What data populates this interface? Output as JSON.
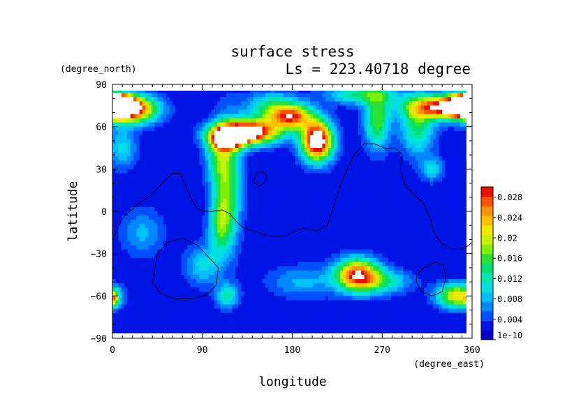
{
  "chart_data": {
    "type": "heatmap",
    "title": "surface stress",
    "subtitle": "Ls = 223.40718 degree",
    "xlabel": "longitude",
    "ylabel": "latitude",
    "x_units": "(degree_east)",
    "y_units": "(degree_north)",
    "xlim": [
      0,
      360
    ],
    "ylim": [
      -90,
      90
    ],
    "xticks": [
      "0",
      "90",
      "180",
      "270",
      "360"
    ],
    "yticks": [
      "90",
      "60",
      "30",
      "0",
      "−30",
      "−60",
      "−90"
    ],
    "colorbar": {
      "min": 0,
      "max": 0.03,
      "tick_labels": [
        "1e-10",
        "0.004",
        "0.008",
        "0.012",
        "0.016",
        "0.02",
        "0.024",
        "0.028"
      ],
      "tick_values": [
        0,
        0.004,
        0.008,
        0.012,
        0.016,
        0.02,
        0.024,
        0.028
      ],
      "levels": 16,
      "colors": [
        "#0000c8",
        "#0014e6",
        "#0050ff",
        "#0088ff",
        "#00c0ff",
        "#00e0e0",
        "#00e8b0",
        "#00e070",
        "#30e030",
        "#80f000",
        "#c8f000",
        "#f0e800",
        "#ffc000",
        "#ff9000",
        "#ff5000",
        "#e81000"
      ],
      "over_color": "#ffffff"
    },
    "background_value": 0.002,
    "features": [
      {
        "lon": 20,
        "lat": 72,
        "value": 0.022,
        "sigma_lon": 18,
        "sigma_lat": 7
      },
      {
        "lon": 0,
        "lat": 76,
        "value": 0.034,
        "sigma_lon": 12,
        "sigma_lat": 5
      },
      {
        "lon": 340,
        "lat": 74,
        "value": 0.032,
        "sigma_lon": 28,
        "sigma_lat": 6
      },
      {
        "lon": 360,
        "lat": 75,
        "value": 0.034,
        "sigma_lon": 10,
        "sigma_lat": 4
      },
      {
        "lon": 305,
        "lat": 60,
        "value": 0.012,
        "sigma_lon": 12,
        "sigma_lat": 14
      },
      {
        "lon": 265,
        "lat": 64,
        "value": 0.014,
        "sigma_lon": 9,
        "sigma_lat": 14
      },
      {
        "lon": 250,
        "lat": 83,
        "value": 0.012,
        "sigma_lon": 25,
        "sigma_lat": 5
      },
      {
        "lon": 135,
        "lat": 56,
        "value": 0.034,
        "sigma_lon": 22,
        "sigma_lat": 6
      },
      {
        "lon": 115,
        "lat": 51,
        "value": 0.026,
        "sigma_lon": 12,
        "sigma_lat": 5
      },
      {
        "lon": 205,
        "lat": 50,
        "value": 0.034,
        "sigma_lon": 11,
        "sigma_lat": 10
      },
      {
        "lon": 180,
        "lat": 67,
        "value": 0.022,
        "sigma_lon": 14,
        "sigma_lat": 6
      },
      {
        "lon": 160,
        "lat": 73,
        "value": 0.012,
        "sigma_lon": 18,
        "sigma_lat": 8
      },
      {
        "lon": 115,
        "lat": 20,
        "value": 0.014,
        "sigma_lon": 10,
        "sigma_lat": 30
      },
      {
        "lon": 108,
        "lat": -10,
        "value": 0.01,
        "sigma_lon": 8,
        "sigma_lat": 15
      },
      {
        "lon": 105,
        "lat": 38,
        "value": 0.008,
        "sigma_lon": 9,
        "sigma_lat": 12
      },
      {
        "lon": 245,
        "lat": -45,
        "value": 0.026,
        "sigma_lon": 15,
        "sigma_lat": 8
      },
      {
        "lon": 270,
        "lat": -50,
        "value": 0.01,
        "sigma_lon": 20,
        "sigma_lat": 6
      },
      {
        "lon": 345,
        "lat": -60,
        "value": 0.02,
        "sigma_lon": 14,
        "sigma_lat": 6
      },
      {
        "lon": 0,
        "lat": -62,
        "value": 0.016,
        "sigma_lon": 5,
        "sigma_lat": 4
      },
      {
        "lon": 115,
        "lat": -60,
        "value": 0.01,
        "sigma_lon": 8,
        "sigma_lat": 6
      },
      {
        "lon": 90,
        "lat": -38,
        "value": 0.008,
        "sigma_lon": 12,
        "sigma_lat": 10
      },
      {
        "lon": 30,
        "lat": -15,
        "value": 0.006,
        "sigma_lon": 15,
        "sigma_lat": 12
      },
      {
        "lon": 190,
        "lat": -50,
        "value": 0.006,
        "sigma_lon": 25,
        "sigma_lat": 8
      },
      {
        "lon": 320,
        "lat": 30,
        "value": 0.008,
        "sigma_lon": 8,
        "sigma_lat": 6
      },
      {
        "lon": 10,
        "lat": 45,
        "value": 0.008,
        "sigma_lon": 10,
        "sigma_lat": 10
      }
    ],
    "contour_lines": [
      {
        "name": "dichotomy-boundary",
        "points": [
          [
            0,
            -20
          ],
          [
            10,
            -5
          ],
          [
            25,
            5
          ],
          [
            40,
            12
          ],
          [
            50,
            20
          ],
          [
            60,
            27
          ],
          [
            68,
            27
          ],
          [
            72,
            20
          ],
          [
            78,
            10
          ],
          [
            85,
            2
          ],
          [
            90,
            0
          ],
          [
            100,
            0
          ],
          [
            110,
            1
          ],
          [
            118,
            -2
          ],
          [
            125,
            -8
          ],
          [
            132,
            -12
          ],
          [
            145,
            -15
          ],
          [
            160,
            -18
          ],
          [
            175,
            -17
          ],
          [
            185,
            -13
          ],
          [
            195,
            -12
          ],
          [
            205,
            -14
          ],
          [
            215,
            -10
          ],
          [
            222,
            5
          ],
          [
            228,
            18
          ],
          [
            235,
            30
          ],
          [
            242,
            40
          ],
          [
            252,
            48
          ],
          [
            262,
            48
          ],
          [
            272,
            45
          ],
          [
            285,
            44
          ],
          [
            290,
            40
          ],
          [
            288,
            30
          ],
          [
            293,
            18
          ],
          [
            305,
            10
          ],
          [
            312,
            5
          ],
          [
            318,
            -5
          ],
          [
            322,
            -15
          ],
          [
            330,
            -23
          ],
          [
            340,
            -27
          ],
          [
            348,
            -27
          ],
          [
            355,
            -25
          ],
          [
            360,
            -22
          ]
        ]
      },
      {
        "name": "olympus-outline",
        "points": [
          [
            142,
            20
          ],
          [
            147,
            18
          ],
          [
            152,
            20
          ],
          [
            155,
            25
          ],
          [
            150,
            28
          ],
          [
            144,
            27
          ],
          [
            142,
            23
          ],
          [
            142,
            20
          ]
        ]
      },
      {
        "name": "hellas-outline",
        "points": [
          [
            40,
            -50
          ],
          [
            45,
            -30
          ],
          [
            55,
            -22
          ],
          [
            70,
            -19
          ],
          [
            85,
            -24
          ],
          [
            97,
            -33
          ],
          [
            106,
            -40
          ],
          [
            104,
            -52
          ],
          [
            95,
            -59
          ],
          [
            80,
            -62
          ],
          [
            62,
            -62
          ],
          [
            48,
            -58
          ],
          [
            40,
            -50
          ]
        ]
      },
      {
        "name": "argyre-outline",
        "points": [
          [
            305,
            -45
          ],
          [
            312,
            -40
          ],
          [
            323,
            -36
          ],
          [
            331,
            -38
          ],
          [
            334,
            -46
          ],
          [
            330,
            -57
          ],
          [
            320,
            -60
          ],
          [
            310,
            -57
          ],
          [
            304,
            -50
          ],
          [
            305,
            -45
          ]
        ]
      }
    ]
  }
}
